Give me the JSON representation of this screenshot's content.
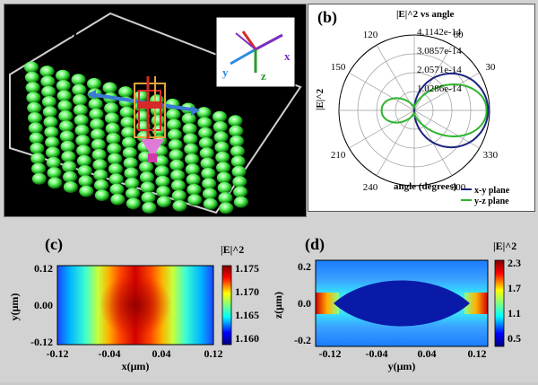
{
  "panel_a": {
    "label": "(a)",
    "axes": {
      "x": "x",
      "y": "y",
      "z": "z"
    }
  },
  "panel_b": {
    "label": "(b)",
    "title": "|E|^2 vs angle",
    "rlabel": "|E|^2",
    "angle_axis_label": "angle (degrees)",
    "ring_labels": [
      "1.0286e-14",
      "2.0571e-14",
      "3.0857e-14",
      "4.1142e-14"
    ],
    "angle_labels": [
      {
        "deg": 30,
        "text": "30"
      },
      {
        "deg": 60,
        "text": "60"
      },
      {
        "deg": 120,
        "text": "120"
      },
      {
        "deg": 150,
        "text": "150"
      },
      {
        "deg": 210,
        "text": "210"
      },
      {
        "deg": 240,
        "text": "240"
      },
      {
        "deg": 300,
        "text": "300"
      },
      {
        "deg": 330,
        "text": "330"
      }
    ],
    "legend": [
      {
        "name": "x-y plane",
        "color": "#1a237e"
      },
      {
        "name": "y-z plane",
        "color": "#2db52d"
      }
    ]
  },
  "panel_c": {
    "label": "(c)",
    "xlabel": "x(μm)",
    "ylabel": "y(μm)",
    "colorbar_title": "|E|^2",
    "x_ticks": [
      "-0.12",
      "-0.04",
      "0.04",
      "0.12"
    ],
    "y_ticks": [
      "0.12",
      "0.00",
      "-0.12"
    ],
    "cbar_ticks": [
      "1.175",
      "1.170",
      "1.165",
      "1.160"
    ]
  },
  "panel_d": {
    "label": "(d)",
    "xlabel": "y(μm)",
    "ylabel": "z(μm)",
    "colorbar_title": "|E|^2",
    "x_ticks": [
      "-0.12",
      "-0.04",
      "0.04",
      "0.12"
    ],
    "y_ticks": [
      "0.2",
      "0.0",
      "-0.2"
    ],
    "cbar_ticks": [
      "2.3",
      "1.7",
      "1.1",
      "0.5"
    ]
  },
  "colors": {
    "xy_plane": "#1a237e",
    "yz_plane": "#2db52d",
    "axis_x": "#7b2fbf",
    "axis_y": "#2b8be0",
    "axis_z": "#2a9a2a",
    "axis_red": "#d62828"
  }
}
